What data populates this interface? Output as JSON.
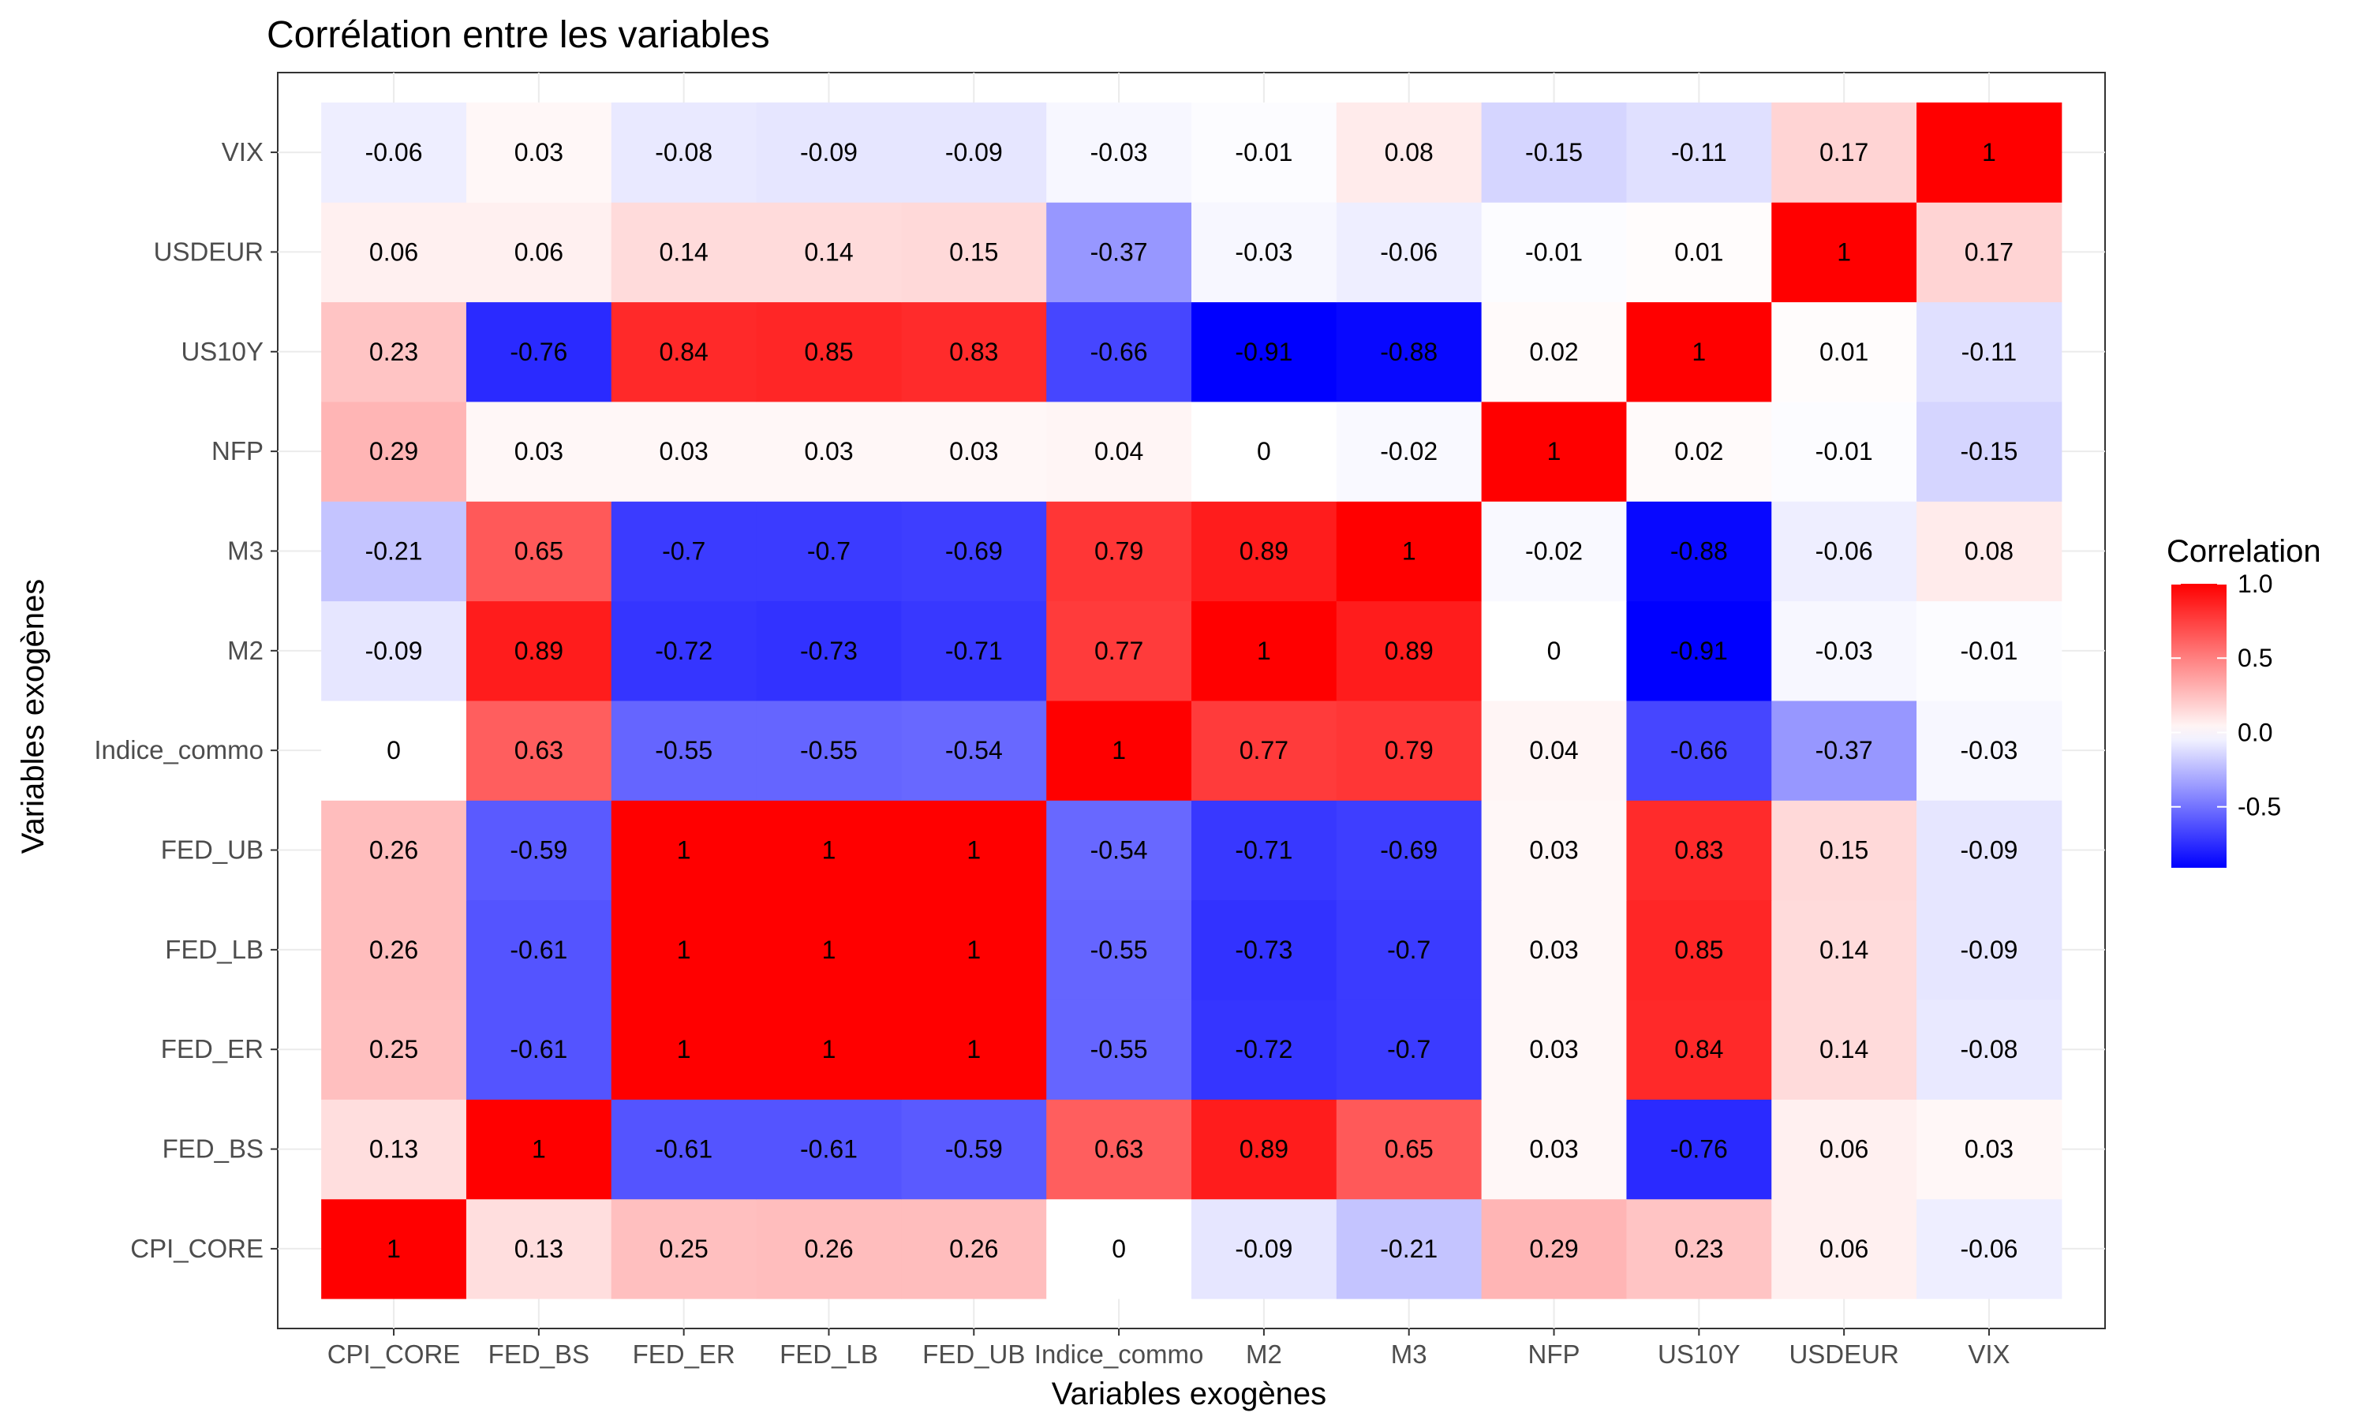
{
  "chart_data": {
    "type": "heatmap",
    "title": "Corrélation entre les variables",
    "xlabel": "Variables exogènes",
    "ylabel": "Variables exogènes",
    "variables": [
      "CPI_CORE",
      "FED_BS",
      "FED_ER",
      "FED_LB",
      "FED_UB",
      "Indice_commo",
      "M2",
      "M3",
      "NFP",
      "US10Y",
      "USDEUR",
      "VIX"
    ],
    "matrix": [
      [
        1,
        0.13,
        0.25,
        0.26,
        0.26,
        0,
        -0.09,
        -0.21,
        0.29,
        0.23,
        0.06,
        -0.06
      ],
      [
        0.13,
        1,
        -0.61,
        -0.61,
        -0.59,
        0.63,
        0.89,
        0.65,
        0.03,
        -0.76,
        0.06,
        0.03
      ],
      [
        0.25,
        -0.61,
        1,
        1,
        1,
        -0.55,
        -0.72,
        -0.7,
        0.03,
        0.84,
        0.14,
        -0.08
      ],
      [
        0.26,
        -0.61,
        1,
        1,
        1,
        -0.55,
        -0.73,
        -0.7,
        0.03,
        0.85,
        0.14,
        -0.09
      ],
      [
        0.26,
        -0.59,
        1,
        1,
        1,
        -0.54,
        -0.71,
        -0.69,
        0.03,
        0.83,
        0.15,
        -0.09
      ],
      [
        0,
        0.63,
        -0.55,
        -0.55,
        -0.54,
        1,
        0.77,
        0.79,
        0.04,
        -0.66,
        -0.37,
        -0.03
      ],
      [
        -0.09,
        0.89,
        -0.72,
        -0.73,
        -0.71,
        0.77,
        1,
        0.89,
        0,
        -0.91,
        -0.03,
        -0.01
      ],
      [
        -0.21,
        0.65,
        -0.7,
        -0.7,
        -0.69,
        0.79,
        0.89,
        1,
        -0.02,
        -0.88,
        -0.06,
        0.08
      ],
      [
        0.29,
        0.03,
        0.03,
        0.03,
        0.03,
        0.04,
        0,
        -0.02,
        1,
        0.02,
        -0.01,
        -0.15
      ],
      [
        0.23,
        -0.76,
        0.84,
        0.85,
        0.83,
        -0.66,
        -0.91,
        -0.88,
        0.02,
        1,
        0.01,
        -0.11
      ],
      [
        0.06,
        0.06,
        0.14,
        0.14,
        0.15,
        -0.37,
        -0.03,
        -0.06,
        -0.01,
        0.01,
        1,
        0.17
      ],
      [
        -0.06,
        0.03,
        -0.08,
        -0.09,
        -0.09,
        -0.03,
        -0.01,
        0.08,
        -0.15,
        -0.11,
        0.17,
        1
      ]
    ],
    "legend": {
      "title": "Correlation",
      "ticks": [
        "1.0",
        "0.5",
        "0.0",
        "-0.5"
      ],
      "tick_values": [
        1.0,
        0.5,
        0.0,
        -0.5
      ],
      "range": [
        -0.91,
        1.0
      ],
      "placement": "right"
    },
    "colors": {
      "low": "#0000ff",
      "mid": "#ffffff",
      "high": "#ff0000"
    },
    "grid": true
  }
}
